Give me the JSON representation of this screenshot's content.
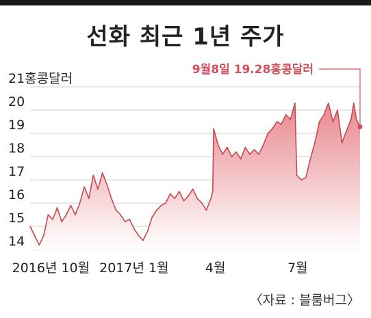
{
  "title": "선화 최근 1년 주가",
  "source": "〈자료 : 블룸버그〉",
  "colors": {
    "line": "#c7474f",
    "fill_top": "#e8898f",
    "fill_bottom": "#ffffff",
    "note": "#d0505a",
    "grid": "#cfcfcf"
  },
  "chart_data": {
    "type": "area",
    "title": "선화 최근 1년 주가",
    "ylabel": "홍콩달러",
    "ylim": [
      14,
      21
    ],
    "y_ticks": [
      {
        "value": 14,
        "label": "14"
      },
      {
        "value": 15,
        "label": "15"
      },
      {
        "value": 16,
        "label": "16"
      },
      {
        "value": 17,
        "label": "17"
      },
      {
        "value": 18,
        "label": "18"
      },
      {
        "value": 19,
        "label": "19"
      },
      {
        "value": 20,
        "label": "20"
      },
      {
        "value": 21,
        "label": "21홍콩달러"
      }
    ],
    "x_ticks": [
      {
        "date": "2016-10-01",
        "label": "2016년 10월"
      },
      {
        "date": "2017-01-01",
        "label": "2017년 1월"
      },
      {
        "date": "2017-04-01",
        "label": "4월"
      },
      {
        "date": "2017-07-01",
        "label": "7월"
      }
    ],
    "xlim": [
      "2016-09-08",
      "2017-09-08"
    ],
    "grid": true,
    "annotation": {
      "date": "2017-09-08",
      "value": 19.28,
      "label": "9월8일 19.28홍콩달러"
    },
    "series": [
      {
        "values": [
          [
            "2016-09-08",
            15.0
          ],
          [
            "2016-09-13",
            14.6
          ],
          [
            "2016-09-18",
            14.2
          ],
          [
            "2016-09-23",
            14.6
          ],
          [
            "2016-09-28",
            15.5
          ],
          [
            "2016-10-03",
            15.3
          ],
          [
            "2016-10-08",
            15.8
          ],
          [
            "2016-10-13",
            15.2
          ],
          [
            "2016-10-18",
            15.5
          ],
          [
            "2016-10-23",
            15.9
          ],
          [
            "2016-10-28",
            15.5
          ],
          [
            "2016-11-02",
            16.0
          ],
          [
            "2016-11-07",
            16.7
          ],
          [
            "2016-11-12",
            16.2
          ],
          [
            "2016-11-17",
            17.2
          ],
          [
            "2016-11-22",
            16.6
          ],
          [
            "2016-11-27",
            17.3
          ],
          [
            "2016-12-02",
            16.8
          ],
          [
            "2016-12-07",
            16.2
          ],
          [
            "2016-12-12",
            15.7
          ],
          [
            "2016-12-17",
            15.5
          ],
          [
            "2016-12-22",
            15.2
          ],
          [
            "2016-12-27",
            15.3
          ],
          [
            "2017-01-01",
            14.9
          ],
          [
            "2017-01-06",
            14.6
          ],
          [
            "2017-01-11",
            14.4
          ],
          [
            "2017-01-16",
            14.8
          ],
          [
            "2017-01-21",
            15.4
          ],
          [
            "2017-01-26",
            15.7
          ],
          [
            "2017-01-31",
            15.9
          ],
          [
            "2017-02-05",
            16.0
          ],
          [
            "2017-02-10",
            16.4
          ],
          [
            "2017-02-15",
            16.2
          ],
          [
            "2017-02-20",
            16.5
          ],
          [
            "2017-02-25",
            16.1
          ],
          [
            "2017-03-02",
            16.3
          ],
          [
            "2017-03-07",
            16.6
          ],
          [
            "2017-03-12",
            16.2
          ],
          [
            "2017-03-17",
            16.0
          ],
          [
            "2017-03-22",
            15.7
          ],
          [
            "2017-03-27",
            16.2
          ],
          [
            "2017-03-29",
            16.5
          ],
          [
            "2017-03-30",
            19.2
          ],
          [
            "2017-04-04",
            18.5
          ],
          [
            "2017-04-09",
            18.1
          ],
          [
            "2017-04-14",
            18.4
          ],
          [
            "2017-04-19",
            18.0
          ],
          [
            "2017-04-24",
            18.2
          ],
          [
            "2017-04-29",
            17.9
          ],
          [
            "2017-05-04",
            18.4
          ],
          [
            "2017-05-09",
            18.1
          ],
          [
            "2017-05-14",
            18.3
          ],
          [
            "2017-05-19",
            18.1
          ],
          [
            "2017-05-24",
            18.5
          ],
          [
            "2017-05-29",
            19.0
          ],
          [
            "2017-06-03",
            19.2
          ],
          [
            "2017-06-08",
            19.5
          ],
          [
            "2017-06-13",
            19.4
          ],
          [
            "2017-06-18",
            19.8
          ],
          [
            "2017-06-23",
            19.6
          ],
          [
            "2017-06-28",
            20.3
          ],
          [
            "2017-06-30",
            17.2
          ],
          [
            "2017-07-05",
            17.0
          ],
          [
            "2017-07-10",
            17.1
          ],
          [
            "2017-07-15",
            17.9
          ],
          [
            "2017-07-20",
            18.6
          ],
          [
            "2017-07-25",
            19.5
          ],
          [
            "2017-07-30",
            19.8
          ],
          [
            "2017-08-04",
            20.3
          ],
          [
            "2017-08-09",
            19.5
          ],
          [
            "2017-08-14",
            20.0
          ],
          [
            "2017-08-19",
            18.6
          ],
          [
            "2017-08-24",
            19.1
          ],
          [
            "2017-08-29",
            19.6
          ],
          [
            "2017-09-01",
            20.3
          ],
          [
            "2017-09-04",
            19.6
          ],
          [
            "2017-09-08",
            19.28
          ]
        ]
      }
    ]
  }
}
